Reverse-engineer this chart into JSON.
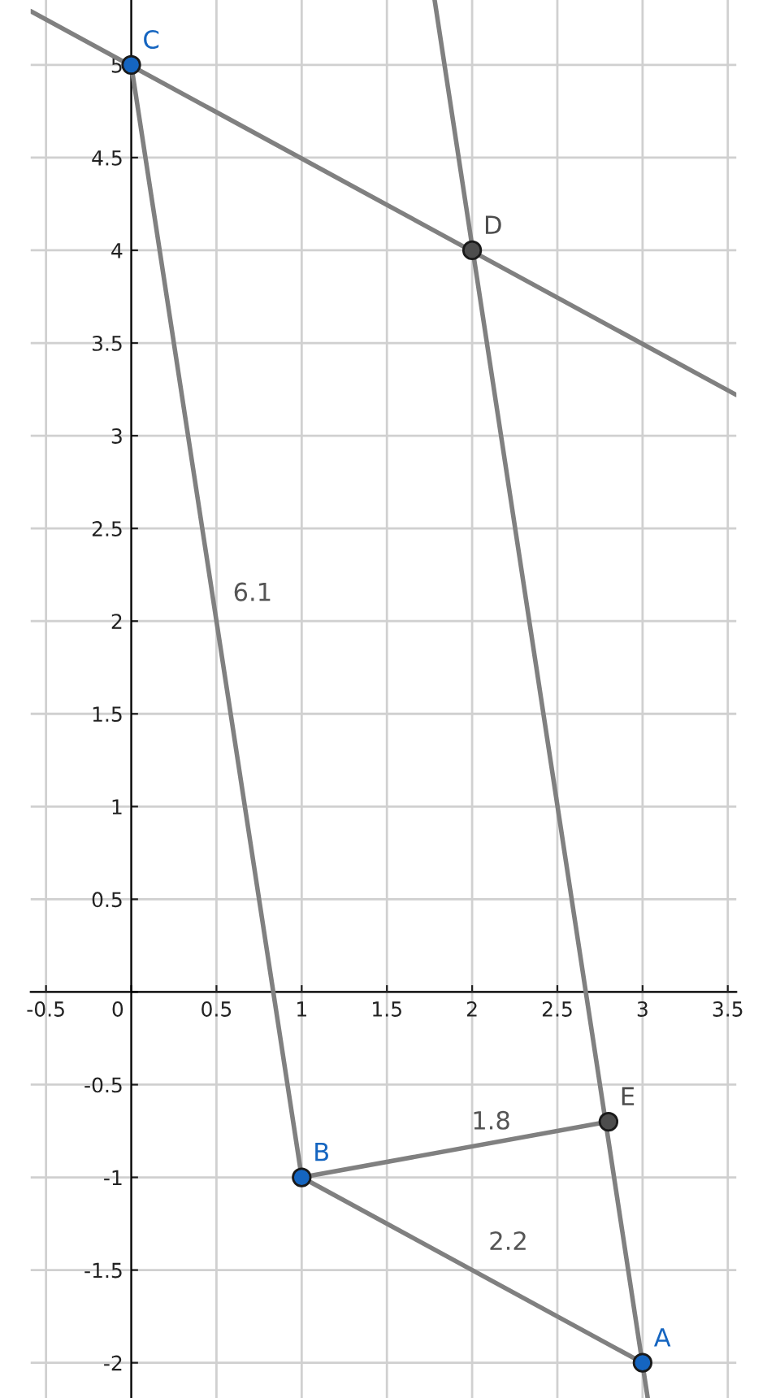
{
  "chart_data": {
    "type": "line",
    "xlim": [
      -0.59,
      3.55
    ],
    "ylim": [
      -2.19,
      5.35
    ],
    "xticks": [
      -0.5,
      {
        "value": 0,
        "label": "0"
      },
      0.5,
      1,
      1.5,
      2,
      2.5,
      3,
      3.5
    ],
    "yticks": [
      -2,
      -1.5,
      -1,
      -0.5,
      {
        "value": 0,
        "label": null
      },
      0.5,
      1,
      1.5,
      2,
      2.5,
      3,
      3.5,
      4,
      4.5,
      5
    ],
    "grid": true,
    "line_style": "solid",
    "series": [
      {
        "color": "#808080",
        "x": [
          -0.59,
          3.55
        ],
        "values": [
          5.29,
          3.22
        ]
      },
      {
        "color": "#808080",
        "x": [
          1.78,
          3.03
        ],
        "values": [
          5.35,
          -2.19
        ]
      },
      {
        "color": "#808080",
        "x": [
          0,
          1
        ],
        "values": [
          5,
          -1
        ]
      },
      {
        "color": "#808080",
        "x": [
          1,
          2.8
        ],
        "values": [
          -1,
          -0.7
        ]
      },
      {
        "color": "#808080",
        "x": [
          1,
          3
        ],
        "values": [
          -1,
          -2
        ]
      },
      {
        "type": "scatter",
        "color": "#1565c0",
        "marker": "circle",
        "x": [
          0,
          1,
          3
        ],
        "values": [
          5,
          -1,
          -2
        ]
      },
      {
        "type": "scatter",
        "color": "#4d4d4d",
        "marker": "circle",
        "x": [
          2,
          2.8
        ],
        "values": [
          4,
          -0.7
        ]
      }
    ],
    "annotations": [
      {
        "text": "C",
        "x": 0,
        "y": 5
      },
      {
        "text": "D",
        "x": 2,
        "y": 4
      },
      {
        "text": "B",
        "x": 1,
        "y": -1
      },
      {
        "text": "A",
        "x": 3,
        "y": -2
      },
      {
        "text": "E",
        "x": 2.8,
        "y": -0.7
      },
      {
        "text": "6.1",
        "x": 0.5,
        "y": 2
      },
      {
        "text": "1.8",
        "x": 1.9,
        "y": -0.85
      },
      {
        "text": "2.2",
        "x": 2,
        "y": -1.5
      }
    ]
  }
}
